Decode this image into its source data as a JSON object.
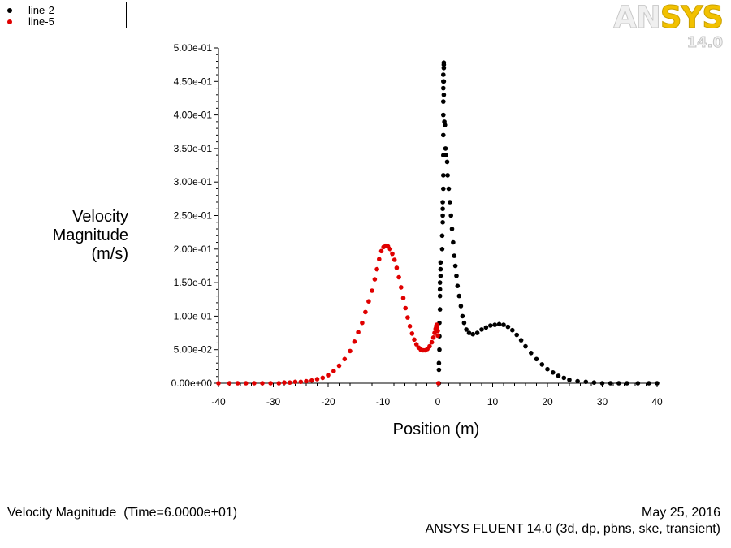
{
  "legend": {
    "items": [
      {
        "label": "line-2",
        "color": "#000000"
      },
      {
        "label": "line-5",
        "color": "#e00000"
      }
    ]
  },
  "logo": {
    "brand_a": "AN",
    "brand_b": "SYS",
    "version": "14.0"
  },
  "footer": {
    "quantity": "Velocity Magnitude  (Time=6.0000e+01)",
    "date": "May 25, 2016",
    "solver": "ANSYS FLUENT 14.0 (3d, dp, pbns, ske, transient)"
  },
  "chart_data": {
    "type": "scatter",
    "title": "",
    "xlabel": "Position (m)",
    "ylabel": [
      "Velocity",
      "Magnitude",
      "(m/s)"
    ],
    "xlim": [
      -40,
      40
    ],
    "ylim": [
      0,
      0.5
    ],
    "x_ticks": [
      -40,
      -30,
      -20,
      -10,
      0,
      10,
      20,
      30,
      40
    ],
    "x_tick_labels": [
      "-40",
      "-30",
      "-20",
      "-10",
      "0",
      "10",
      "20",
      "30",
      "40"
    ],
    "y_ticks": [
      0,
      0.05,
      0.1,
      0.15,
      0.2,
      0.25,
      0.3,
      0.35,
      0.4,
      0.45,
      0.5
    ],
    "y_tick_labels": [
      "0.00e+00",
      "5.00e-02",
      "1.00e-01",
      "1.50e-01",
      "2.00e-01",
      "2.50e-01",
      "3.00e-01",
      "3.50e-01",
      "4.00e-01",
      "4.50e-01",
      "5.00e-01"
    ],
    "grid": false,
    "legend_position": "top-left",
    "series": [
      {
        "name": "line-2",
        "color": "#000000",
        "points": [
          [
            0.2,
            0.0
          ],
          [
            0.2,
            0.02
          ],
          [
            0.2,
            0.03
          ],
          [
            0.3,
            0.05
          ],
          [
            0.3,
            0.07
          ],
          [
            0.3,
            0.09
          ],
          [
            0.4,
            0.11
          ],
          [
            0.4,
            0.13
          ],
          [
            0.4,
            0.14
          ],
          [
            0.4,
            0.15
          ],
          [
            0.5,
            0.16
          ],
          [
            0.5,
            0.17
          ],
          [
            0.5,
            0.18
          ],
          [
            0.8,
            0.2
          ],
          [
            0.8,
            0.22
          ],
          [
            0.9,
            0.24
          ],
          [
            0.9,
            0.25
          ],
          [
            0.9,
            0.26
          ],
          [
            0.9,
            0.27
          ],
          [
            1.0,
            0.29
          ],
          [
            1.0,
            0.31
          ],
          [
            1.0,
            0.34
          ],
          [
            1.0,
            0.37
          ],
          [
            1.0,
            0.4
          ],
          [
            1.0,
            0.42
          ],
          [
            1.0,
            0.44
          ],
          [
            1.0,
            0.45
          ],
          [
            1.0,
            0.46
          ],
          [
            1.1,
            0.47
          ],
          [
            1.1,
            0.475
          ],
          [
            1.1,
            0.478
          ],
          [
            1.1,
            0.45
          ],
          [
            1.1,
            0.43
          ],
          [
            1.2,
            0.39
          ],
          [
            1.3,
            0.385
          ],
          [
            1.4,
            0.35
          ],
          [
            1.5,
            0.34
          ],
          [
            1.7,
            0.33
          ],
          [
            1.8,
            0.31
          ],
          [
            2.0,
            0.29
          ],
          [
            2.2,
            0.27
          ],
          [
            2.4,
            0.25
          ],
          [
            2.6,
            0.23
          ],
          [
            2.8,
            0.21
          ],
          [
            3.0,
            0.19
          ],
          [
            3.2,
            0.175
          ],
          [
            3.4,
            0.16
          ],
          [
            3.6,
            0.145
          ],
          [
            3.9,
            0.13
          ],
          [
            4.2,
            0.115
          ],
          [
            4.5,
            0.1
          ],
          [
            4.8,
            0.09
          ],
          [
            5.2,
            0.08
          ],
          [
            5.7,
            0.075
          ],
          [
            6.4,
            0.073
          ],
          [
            7.2,
            0.075
          ],
          [
            8.0,
            0.08
          ],
          [
            8.8,
            0.083
          ],
          [
            9.6,
            0.086
          ],
          [
            10.4,
            0.087
          ],
          [
            11.2,
            0.088
          ],
          [
            12.0,
            0.087
          ],
          [
            12.8,
            0.084
          ],
          [
            13.6,
            0.079
          ],
          [
            14.4,
            0.072
          ],
          [
            15.2,
            0.064
          ],
          [
            16.0,
            0.055
          ],
          [
            17.0,
            0.045
          ],
          [
            18.0,
            0.036
          ],
          [
            19.0,
            0.028
          ],
          [
            20.0,
            0.021
          ],
          [
            21.0,
            0.016
          ],
          [
            22.0,
            0.011
          ],
          [
            23.0,
            0.008
          ],
          [
            24.0,
            0.005
          ],
          [
            25.5,
            0.003
          ],
          [
            27.0,
            0.002
          ],
          [
            28.5,
            0.001
          ],
          [
            30.0,
            0.0
          ],
          [
            31.5,
            0.0
          ],
          [
            33.0,
            0.0
          ],
          [
            34.5,
            0.0
          ],
          [
            36.5,
            0.0
          ],
          [
            38.5,
            0.0
          ],
          [
            40.0,
            0.0
          ]
        ]
      },
      {
        "name": "line-5",
        "color": "#e00000",
        "points": [
          [
            -40.0,
            0.0
          ],
          [
            -38.0,
            0.0
          ],
          [
            -36.5,
            0.0
          ],
          [
            -35.0,
            0.0
          ],
          [
            -33.5,
            0.0
          ],
          [
            -32.0,
            0.0
          ],
          [
            -30.5,
            0.0
          ],
          [
            -29.0,
            0.0
          ],
          [
            -28.0,
            0.001
          ],
          [
            -27.0,
            0.001
          ],
          [
            -26.0,
            0.002
          ],
          [
            -25.0,
            0.002
          ],
          [
            -24.0,
            0.003
          ],
          [
            -23.0,
            0.004
          ],
          [
            -22.0,
            0.006
          ],
          [
            -21.0,
            0.008
          ],
          [
            -20.0,
            0.012
          ],
          [
            -19.0,
            0.018
          ],
          [
            -18.0,
            0.026
          ],
          [
            -17.0,
            0.036
          ],
          [
            -16.0,
            0.048
          ],
          [
            -15.2,
            0.062
          ],
          [
            -14.5,
            0.076
          ],
          [
            -13.8,
            0.09
          ],
          [
            -13.2,
            0.106
          ],
          [
            -12.6,
            0.122
          ],
          [
            -12.0,
            0.138
          ],
          [
            -11.5,
            0.155
          ],
          [
            -11.1,
            0.17
          ],
          [
            -10.7,
            0.185
          ],
          [
            -10.3,
            0.197
          ],
          [
            -9.9,
            0.203
          ],
          [
            -9.5,
            0.205
          ],
          [
            -9.1,
            0.204
          ],
          [
            -8.7,
            0.2
          ],
          [
            -8.3,
            0.193
          ],
          [
            -7.9,
            0.184
          ],
          [
            -7.5,
            0.172
          ],
          [
            -7.1,
            0.158
          ],
          [
            -6.7,
            0.143
          ],
          [
            -6.3,
            0.127
          ],
          [
            -5.9,
            0.112
          ],
          [
            -5.5,
            0.098
          ],
          [
            -5.1,
            0.085
          ],
          [
            -4.7,
            0.074
          ],
          [
            -4.3,
            0.065
          ],
          [
            -3.9,
            0.058
          ],
          [
            -3.5,
            0.053
          ],
          [
            -3.1,
            0.05
          ],
          [
            -2.7,
            0.049
          ],
          [
            -2.3,
            0.049
          ],
          [
            -1.9,
            0.051
          ],
          [
            -1.5,
            0.055
          ],
          [
            -1.1,
            0.061
          ],
          [
            -0.8,
            0.068
          ],
          [
            -0.6,
            0.075
          ],
          [
            -0.4,
            0.081
          ],
          [
            -0.3,
            0.085
          ],
          [
            -0.2,
            0.087
          ],
          [
            -0.1,
            0.083
          ],
          [
            0.0,
            0.078
          ],
          [
            0.0,
            0.071
          ],
          [
            0.1,
            0.0
          ]
        ]
      }
    ]
  }
}
